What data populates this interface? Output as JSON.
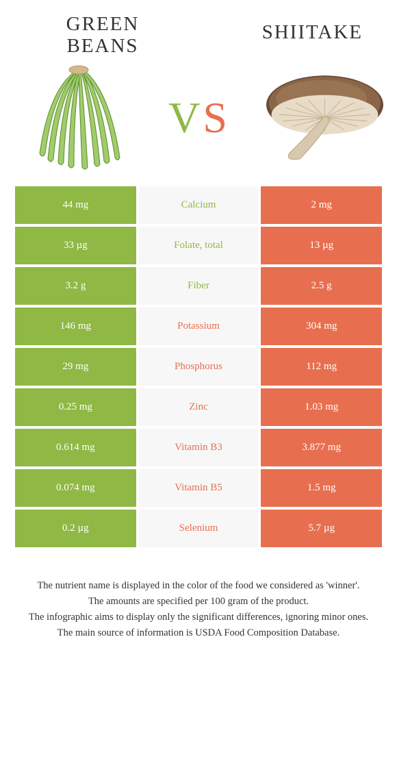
{
  "left_food": {
    "title": "GREEN BEANS"
  },
  "right_food": {
    "title": "SHIITAKE"
  },
  "vs": {
    "v": "V",
    "s": "S"
  },
  "colors": {
    "green": "#8fb844",
    "orange": "#e76f4f",
    "mid_bg": "#f7f7f7",
    "bg": "#ffffff"
  },
  "rows": [
    {
      "left": "44 mg",
      "mid": "Calcium",
      "right": "2 mg",
      "winner": "left"
    },
    {
      "left": "33 µg",
      "mid": "Folate, total",
      "right": "13 µg",
      "winner": "left"
    },
    {
      "left": "3.2 g",
      "mid": "Fiber",
      "right": "2.5 g",
      "winner": "left"
    },
    {
      "left": "146 mg",
      "mid": "Potassium",
      "right": "304 mg",
      "winner": "right"
    },
    {
      "left": "29 mg",
      "mid": "Phosphorus",
      "right": "112 mg",
      "winner": "right"
    },
    {
      "left": "0.25 mg",
      "mid": "Zinc",
      "right": "1.03 mg",
      "winner": "right"
    },
    {
      "left": "0.614 mg",
      "mid": "Vitamin B3",
      "right": "3.877 mg",
      "winner": "right"
    },
    {
      "left": "0.074 mg",
      "mid": "Vitamin B5",
      "right": "1.5 mg",
      "winner": "right"
    },
    {
      "left": "0.2 µg",
      "mid": "Selenium",
      "right": "5.7 µg",
      "winner": "right"
    }
  ],
  "footnotes": [
    "The nutrient name is displayed in the color of the food we considered as 'winner'.",
    "The amounts are specified per 100 gram of the product.",
    "The infographic aims to display only the significant differences, ignoring minor ones.",
    "The main source of information is USDA Food Composition Database."
  ]
}
